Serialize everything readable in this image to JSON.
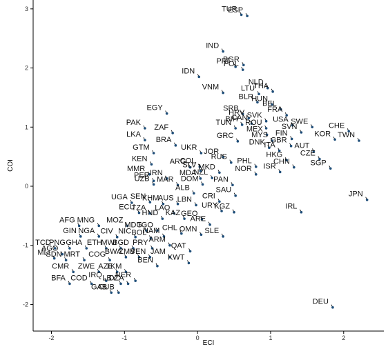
{
  "chart_data": {
    "type": "scatter",
    "title": "",
    "xlabel": "ECI",
    "ylabel": "COI",
    "xlim": [
      -2.25,
      2.55
    ],
    "ylim": [
      -2.45,
      3.15
    ],
    "x_ticks": [
      "-2",
      "-1",
      "0",
      "1",
      "2"
    ],
    "y_ticks": [
      "-2",
      "-1",
      "0",
      "1",
      "2",
      "3"
    ],
    "grid": false,
    "point_color": "#1f4e79",
    "points": [
      {
        "label": "TUR",
        "x": 0.6,
        "y": 2.9
      },
      {
        "label": "ESP",
        "x": 0.68,
        "y": 2.88
      },
      {
        "label": "IND",
        "x": 0.35,
        "y": 2.28
      },
      {
        "label": "BGR",
        "x": 0.63,
        "y": 2.05
      },
      {
        "label": "PRT",
        "x": 0.52,
        "y": 2.02
      },
      {
        "label": "POL",
        "x": 0.62,
        "y": 1.97
      },
      {
        "label": "NLD",
        "x": 0.96,
        "y": 1.66
      },
      {
        "label": "IDN",
        "x": 0.02,
        "y": 1.85
      },
      {
        "label": "VNM",
        "x": 0.35,
        "y": 1.58
      },
      {
        "label": "LTU",
        "x": 0.84,
        "y": 1.56
      },
      {
        "label": "THA",
        "x": 1.03,
        "y": 1.6
      },
      {
        "label": "HUN",
        "x": 1.02,
        "y": 1.38
      },
      {
        "label": "BEL",
        "x": 1.14,
        "y": 1.3
      },
      {
        "label": "BLR",
        "x": 0.82,
        "y": 1.42
      },
      {
        "label": "FRA",
        "x": 1.22,
        "y": 1.2
      },
      {
        "label": "EGY",
        "x": -0.42,
        "y": 1.23
      },
      {
        "label": "SRB",
        "x": 0.62,
        "y": 1.22
      },
      {
        "label": "HRV",
        "x": 0.7,
        "y": 1.15
      },
      {
        "label": "SVK",
        "x": 0.94,
        "y": 1.1
      },
      {
        "label": "USA",
        "x": 1.3,
        "y": 1.03
      },
      {
        "label": "CAN",
        "x": 0.74,
        "y": 1.06
      },
      {
        "label": "BIH",
        "x": 0.61,
        "y": 1.04
      },
      {
        "label": "ROU",
        "x": 0.94,
        "y": 0.98
      },
      {
        "label": "SWE",
        "x": 1.57,
        "y": 1.0
      },
      {
        "label": "CHE",
        "x": 2.07,
        "y": 0.93
      },
      {
        "label": "PAK",
        "x": -0.72,
        "y": 0.98
      },
      {
        "label": "ZAF",
        "x": -0.34,
        "y": 0.9
      },
      {
        "label": "TUN",
        "x": 0.52,
        "y": 0.98
      },
      {
        "label": "FIN",
        "x": 1.29,
        "y": 0.8
      },
      {
        "label": "SVN",
        "x": 1.42,
        "y": 0.91
      },
      {
        "label": "MEX",
        "x": 0.95,
        "y": 0.87
      },
      {
        "label": "MYS",
        "x": 1.02,
        "y": 0.77
      },
      {
        "label": "KOR",
        "x": 1.88,
        "y": 0.79
      },
      {
        "label": "LKA",
        "x": -0.72,
        "y": 0.78
      },
      {
        "label": "BRA",
        "x": -0.3,
        "y": 0.69
      },
      {
        "label": "GRC",
        "x": 0.55,
        "y": 0.76
      },
      {
        "label": "GBR",
        "x": 1.28,
        "y": 0.68
      },
      {
        "label": "AUT",
        "x": 1.59,
        "y": 0.59
      },
      {
        "label": "TWN",
        "x": 2.21,
        "y": 0.77
      },
      {
        "label": "ITA",
        "x": 1.12,
        "y": 0.6
      },
      {
        "label": "DNK",
        "x": 0.98,
        "y": 0.65
      },
      {
        "label": "UKR",
        "x": 0.05,
        "y": 0.56
      },
      {
        "label": "GTM",
        "x": -0.6,
        "y": 0.56
      },
      {
        "label": "JOR",
        "x": 0.35,
        "y": 0.49
      },
      {
        "label": "CZE",
        "x": 1.67,
        "y": 0.46
      },
      {
        "label": "KEN",
        "x": -0.63,
        "y": 0.37
      },
      {
        "label": "COL",
        "x": 0.03,
        "y": 0.33
      },
      {
        "label": "RUS",
        "x": 0.46,
        "y": 0.4
      },
      {
        "label": "HKG",
        "x": 1.22,
        "y": 0.44
      },
      {
        "label": "PHL",
        "x": 0.8,
        "y": 0.33
      },
      {
        "label": "CHN",
        "x": 1.32,
        "y": 0.32
      },
      {
        "label": "SGP",
        "x": 1.82,
        "y": 0.3
      },
      {
        "label": "ARG",
        "x": -0.1,
        "y": 0.32
      },
      {
        "label": "SLV",
        "x": 0.04,
        "y": 0.26
      },
      {
        "label": "MMR",
        "x": -0.66,
        "y": 0.2
      },
      {
        "label": "MKD",
        "x": 0.3,
        "y": 0.23
      },
      {
        "label": "NOR",
        "x": 0.8,
        "y": 0.2
      },
      {
        "label": "ISR",
        "x": 1.13,
        "y": 0.24
      },
      {
        "label": "NZL",
        "x": 0.2,
        "y": 0.14
      },
      {
        "label": "MDA",
        "x": 0.04,
        "y": 0.13
      },
      {
        "label": "IRN",
        "x": -0.42,
        "y": 0.13
      },
      {
        "label": "PER",
        "x": -0.6,
        "y": 0.09
      },
      {
        "label": "DOM",
        "x": 0.07,
        "y": 0.03
      },
      {
        "label": "PAN",
        "x": 0.48,
        "y": 0.02
      },
      {
        "label": "UZB",
        "x": -0.6,
        "y": 0.03
      },
      {
        "label": "MAR",
        "x": -0.27,
        "y": 0.02
      },
      {
        "label": "ALB",
        "x": -0.05,
        "y": -0.12
      },
      {
        "label": "SAU",
        "x": 0.52,
        "y": -0.16
      },
      {
        "label": "UGA",
        "x": -0.9,
        "y": -0.28
      },
      {
        "label": "SEN",
        "x": -0.65,
        "y": -0.27
      },
      {
        "label": "KHM",
        "x": -0.47,
        "y": -0.3
      },
      {
        "label": "AUS",
        "x": -0.27,
        "y": -0.3
      },
      {
        "label": "CRI",
        "x": 0.3,
        "y": -0.26
      },
      {
        "label": "JPN",
        "x": 2.32,
        "y": -0.23
      },
      {
        "label": "LBN",
        "x": -0.02,
        "y": -0.32
      },
      {
        "label": "ECU",
        "x": -0.8,
        "y": -0.45
      },
      {
        "label": "TZA",
        "x": -0.65,
        "y": -0.46
      },
      {
        "label": "LAO",
        "x": -0.32,
        "y": -0.46
      },
      {
        "label": "IRL",
        "x": 1.42,
        "y": -0.44
      },
      {
        "label": "URY",
        "x": 0.33,
        "y": -0.42
      },
      {
        "label": "KGZ",
        "x": 0.5,
        "y": -0.44
      },
      {
        "label": "HND",
        "x": -0.48,
        "y": -0.55
      },
      {
        "label": "KAZ",
        "x": -0.18,
        "y": -0.55
      },
      {
        "label": "GEO",
        "x": 0.06,
        "y": -0.56
      },
      {
        "label": "AFG",
        "x": -1.62,
        "y": -0.67
      },
      {
        "label": "MNG",
        "x": -1.35,
        "y": -0.67
      },
      {
        "label": "MOZ",
        "x": -0.96,
        "y": -0.67
      },
      {
        "label": "MDG",
        "x": -0.7,
        "y": -0.75
      },
      {
        "label": "TGO",
        "x": -0.55,
        "y": -0.75
      },
      {
        "label": "ARE",
        "x": 0.17,
        "y": -0.65
      },
      {
        "label": "GIN",
        "x": -1.6,
        "y": -0.85
      },
      {
        "label": "NGA",
        "x": -1.35,
        "y": -0.85
      },
      {
        "label": "CIV",
        "x": -1.1,
        "y": -0.86
      },
      {
        "label": "NIC",
        "x": -0.85,
        "y": -0.86
      },
      {
        "label": "BOL",
        "x": -0.64,
        "y": -0.88
      },
      {
        "label": "NAM",
        "x": -0.46,
        "y": -0.85
      },
      {
        "label": "CHL",
        "x": -0.22,
        "y": -0.8
      },
      {
        "label": "OMN",
        "x": 0.05,
        "y": -0.82
      },
      {
        "label": "SLE",
        "x": 0.35,
        "y": -0.85
      },
      {
        "label": "TCD",
        "x": -1.95,
        "y": -1.05
      },
      {
        "label": "PNG",
        "x": -1.75,
        "y": -1.05
      },
      {
        "label": "GHA",
        "x": -1.52,
        "y": -1.05
      },
      {
        "label": "ETH",
        "x": -1.25,
        "y": -1.05
      },
      {
        "label": "MWI",
        "x": -1.05,
        "y": -1.05
      },
      {
        "label": "BGD",
        "x": -0.88,
        "y": -1.05
      },
      {
        "label": "PRY",
        "x": -0.62,
        "y": -1.05
      },
      {
        "label": "ARM",
        "x": -0.38,
        "y": -1.0
      },
      {
        "label": "QAT",
        "x": -0.1,
        "y": -1.1
      },
      {
        "label": "AGO",
        "x": -1.85,
        "y": -1.15
      },
      {
        "label": "KWT",
        "x": -0.12,
        "y": -1.3
      },
      {
        "label": "JAM",
        "x": -0.38,
        "y": -1.2
      },
      {
        "label": "MLI",
        "x": -1.96,
        "y": -1.22
      },
      {
        "label": "SDN",
        "x": -1.8,
        "y": -1.25
      },
      {
        "label": "MRT",
        "x": -1.55,
        "y": -1.25
      },
      {
        "label": "COG",
        "x": -1.2,
        "y": -1.25
      },
      {
        "label": "BWA",
        "x": -0.98,
        "y": -1.2
      },
      {
        "label": "ZMB",
        "x": -0.8,
        "y": -1.2
      },
      {
        "label": "VEN",
        "x": -0.65,
        "y": -1.2
      },
      {
        "label": "CMR",
        "x": -1.7,
        "y": -1.45
      },
      {
        "label": "ZWE",
        "x": -1.35,
        "y": -1.45
      },
      {
        "label": "AZE",
        "x": -1.1,
        "y": -1.45
      },
      {
        "label": "TKM",
        "x": -0.98,
        "y": -1.45
      },
      {
        "label": "BEN",
        "x": -0.55,
        "y": -1.35
      },
      {
        "label": "BFA",
        "x": -1.75,
        "y": -1.65
      },
      {
        "label": "COD",
        "x": -1.45,
        "y": -1.65
      },
      {
        "label": "IRQ",
        "x": -1.25,
        "y": -1.6
      },
      {
        "label": "LBY",
        "x": -1.05,
        "y": -1.65
      },
      {
        "label": "DZA",
        "x": -0.95,
        "y": -1.65
      },
      {
        "label": "NER",
        "x": -0.85,
        "y": -1.6
      },
      {
        "label": "GAB",
        "x": -1.18,
        "y": -1.8
      },
      {
        "label": "CUB",
        "x": -1.08,
        "y": -1.8
      },
      {
        "label": "DEU",
        "x": 1.85,
        "y": -2.05
      }
    ]
  }
}
